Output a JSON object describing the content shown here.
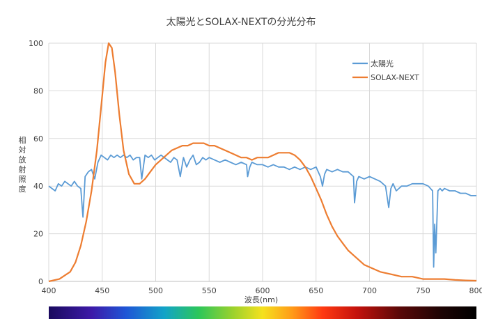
{
  "chart_data": {
    "type": "line",
    "title": "太陽光とSOLAX-NEXTの分光分布",
    "xlabel": "波長(nm)",
    "ylabel": "相対放射照度",
    "xlim": [
      400,
      800
    ],
    "ylim": [
      0,
      100
    ],
    "xticks": [
      400,
      450,
      500,
      550,
      600,
      650,
      700,
      750,
      800
    ],
    "yticks": [
      0,
      20,
      40,
      60,
      80,
      100
    ],
    "grid": true,
    "legend_position": "top-right",
    "spectrum_bar": true,
    "series": [
      {
        "name": "太陽光",
        "color": "#5b9bd5",
        "x": [
          400,
          403,
          406,
          409,
          412,
          415,
          418,
          421,
          424,
          427,
          430,
          432,
          434,
          437,
          440,
          443,
          446,
          449,
          452,
          455,
          458,
          461,
          464,
          467,
          470,
          473,
          476,
          479,
          482,
          485,
          487,
          490,
          493,
          496,
          499,
          502,
          505,
          508,
          511,
          514,
          517,
          520,
          523,
          526,
          529,
          532,
          535,
          538,
          541,
          544,
          547,
          550,
          555,
          560,
          565,
          570,
          575,
          580,
          585,
          586,
          588,
          590,
          595,
          600,
          605,
          610,
          615,
          620,
          625,
          630,
          635,
          640,
          645,
          650,
          654,
          656,
          658,
          660,
          665,
          670,
          675,
          680,
          685,
          686,
          688,
          690,
          695,
          700,
          705,
          710,
          715,
          718,
          720,
          722,
          725,
          730,
          735,
          740,
          745,
          750,
          755,
          759,
          760,
          761,
          762,
          764,
          766,
          768,
          770,
          775,
          780,
          785,
          790,
          795,
          800
        ],
        "values": [
          40,
          39,
          38,
          41,
          40,
          42,
          41,
          40,
          42,
          40,
          39,
          27,
          44,
          46,
          47,
          43,
          50,
          53,
          52,
          51,
          53,
          52,
          53,
          52,
          53,
          52,
          53,
          51,
          52,
          52,
          43,
          53,
          52,
          53,
          51,
          52,
          53,
          52,
          51,
          50,
          52,
          51,
          44,
          52,
          48,
          51,
          53,
          49,
          50,
          52,
          51,
          52,
          51,
          50,
          51,
          50,
          49,
          50,
          49,
          44,
          48,
          50,
          49,
          49,
          48,
          49,
          48,
          48,
          47,
          48,
          47,
          48,
          47,
          48,
          44,
          40,
          45,
          47,
          46,
          47,
          46,
          46,
          44,
          33,
          42,
          44,
          43,
          44,
          43,
          42,
          40,
          31,
          39,
          41,
          38,
          40,
          40,
          41,
          41,
          41,
          40,
          38,
          6,
          24,
          12,
          38,
          39,
          38,
          39,
          38,
          38,
          37,
          37,
          36,
          36
        ]
      },
      {
        "name": "SOLAX-NEXT",
        "color": "#ed7d31",
        "x": [
          400,
          410,
          420,
          425,
          430,
          435,
          440,
          445,
          450,
          453,
          456,
          459,
          462,
          466,
          470,
          475,
          480,
          485,
          490,
          495,
          500,
          505,
          510,
          515,
          520,
          525,
          530,
          535,
          540,
          545,
          550,
          555,
          560,
          565,
          570,
          575,
          580,
          585,
          590,
          595,
          600,
          605,
          610,
          615,
          620,
          625,
          630,
          635,
          640,
          645,
          650,
          655,
          660,
          665,
          670,
          675,
          680,
          685,
          690,
          695,
          700,
          710,
          720,
          730,
          740,
          750,
          760,
          770,
          780,
          790,
          800
        ],
        "values": [
          0,
          1,
          4,
          8,
          15,
          25,
          38,
          55,
          78,
          92,
          100,
          98,
          88,
          70,
          55,
          45,
          41,
          41,
          43,
          46,
          49,
          51,
          53,
          55,
          56,
          57,
          57,
          58,
          58,
          58,
          57,
          57,
          56,
          55,
          54,
          53,
          52,
          52,
          51,
          52,
          52,
          52,
          53,
          54,
          54,
          54,
          53,
          51,
          48,
          44,
          39,
          34,
          28,
          23,
          19,
          16,
          13,
          11,
          9,
          7,
          6,
          4,
          3,
          2,
          2,
          1,
          1,
          1,
          0.6,
          0.4,
          0.3
        ]
      }
    ]
  }
}
